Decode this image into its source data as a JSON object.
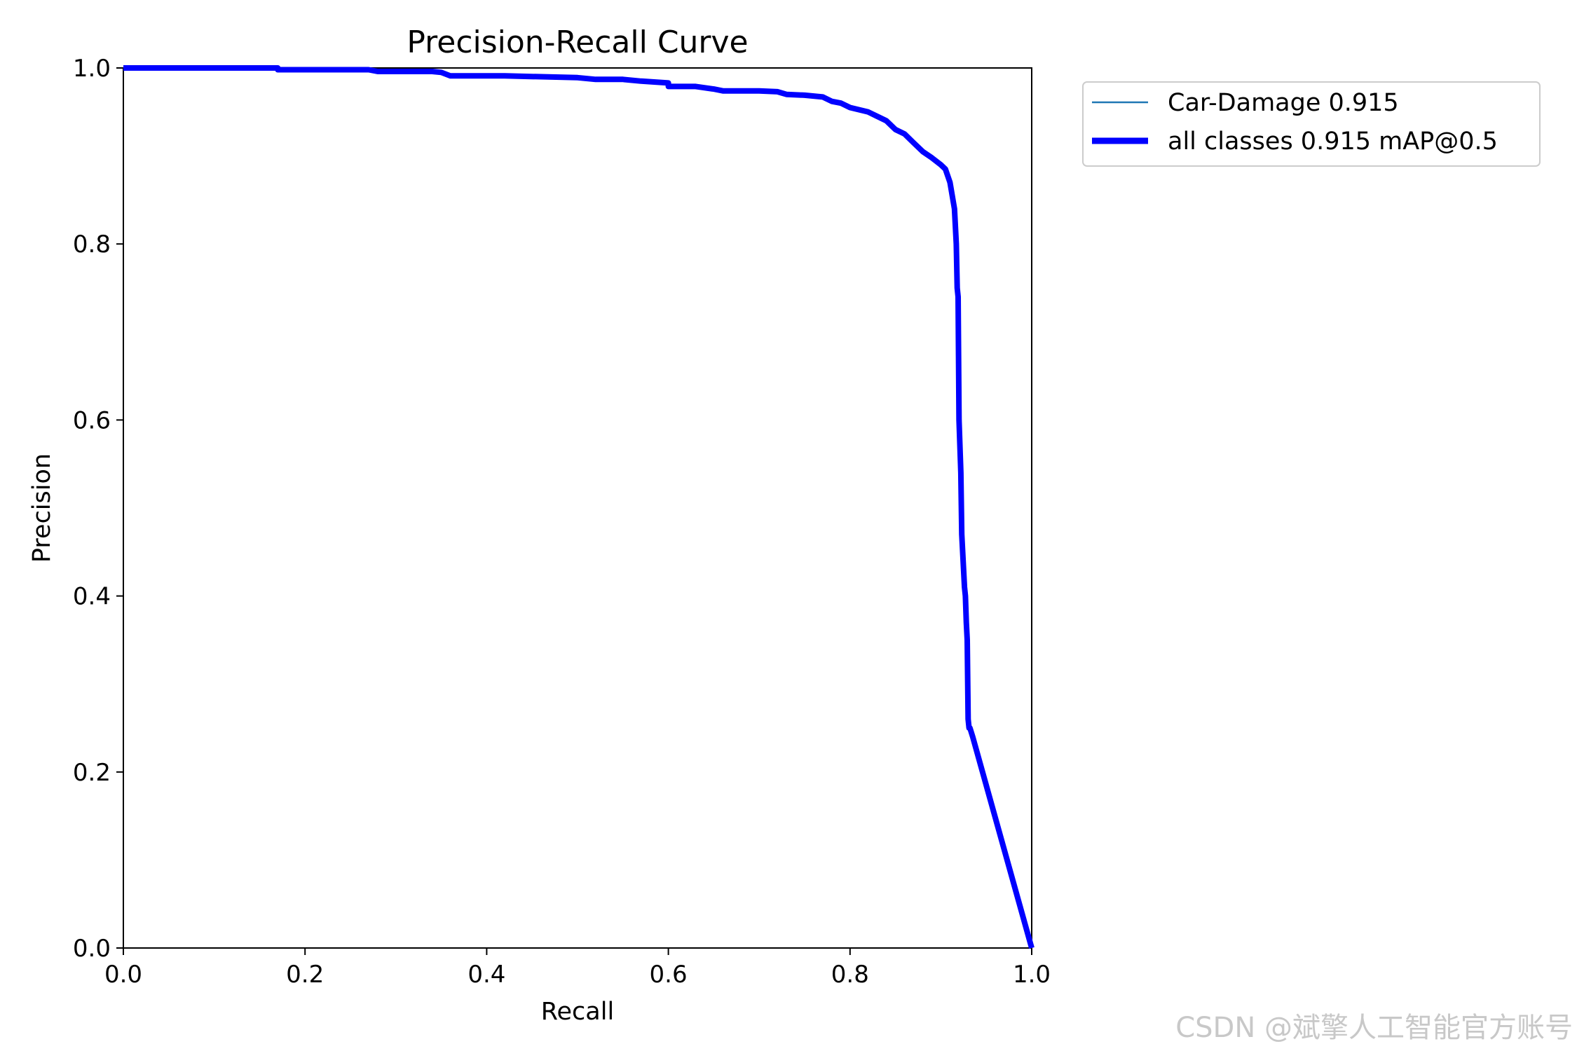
{
  "chart_data": {
    "type": "line",
    "title": "Precision-Recall Curve",
    "xlabel": "Recall",
    "ylabel": "Precision",
    "xlim": [
      0.0,
      1.0
    ],
    "ylim": [
      0.0,
      1.0
    ],
    "xticks": [
      "0.0",
      "0.2",
      "0.4",
      "0.6",
      "0.8",
      "1.0"
    ],
    "yticks": [
      "0.0",
      "0.2",
      "0.4",
      "0.6",
      "0.8",
      "1.0"
    ],
    "grid": false,
    "legend_position": "outside-top-right",
    "series": [
      {
        "name": "Car-Damage 0.915",
        "color": "#1f77b4",
        "line_style": "thin",
        "x": [
          0.0,
          0.17,
          0.17,
          0.27,
          0.28,
          0.34,
          0.35,
          0.36,
          0.42,
          0.5,
          0.52,
          0.55,
          0.57,
          0.6,
          0.6,
          0.63,
          0.65,
          0.66,
          0.7,
          0.72,
          0.73,
          0.75,
          0.77,
          0.78,
          0.79,
          0.8,
          0.82,
          0.83,
          0.84,
          0.85,
          0.86,
          0.87,
          0.88,
          0.89,
          0.9,
          0.905,
          0.91,
          0.915,
          0.917,
          0.918,
          0.919,
          0.92,
          0.921,
          0.922,
          0.923,
          0.924,
          0.926,
          0.927,
          0.928,
          0.929,
          0.93,
          0.931,
          0.932,
          0.935,
          1.0
        ],
        "y": [
          1.0,
          1.0,
          0.998,
          0.998,
          0.996,
          0.996,
          0.995,
          0.991,
          0.991,
          0.989,
          0.987,
          0.987,
          0.985,
          0.983,
          0.979,
          0.979,
          0.976,
          0.974,
          0.974,
          0.973,
          0.97,
          0.969,
          0.967,
          0.962,
          0.96,
          0.955,
          0.95,
          0.945,
          0.94,
          0.93,
          0.925,
          0.915,
          0.905,
          0.898,
          0.89,
          0.885,
          0.87,
          0.84,
          0.8,
          0.75,
          0.74,
          0.6,
          0.57,
          0.54,
          0.47,
          0.45,
          0.41,
          0.4,
          0.37,
          0.35,
          0.26,
          0.25,
          0.25,
          0.24,
          0.0
        ]
      },
      {
        "name": "all classes 0.915 mAP@0.5",
        "color": "#0000ff",
        "line_style": "thick",
        "x": [
          0.0,
          0.17,
          0.17,
          0.27,
          0.28,
          0.34,
          0.35,
          0.36,
          0.42,
          0.5,
          0.52,
          0.55,
          0.57,
          0.6,
          0.6,
          0.63,
          0.65,
          0.66,
          0.7,
          0.72,
          0.73,
          0.75,
          0.77,
          0.78,
          0.79,
          0.8,
          0.82,
          0.83,
          0.84,
          0.85,
          0.86,
          0.87,
          0.88,
          0.89,
          0.9,
          0.905,
          0.91,
          0.915,
          0.917,
          0.918,
          0.919,
          0.92,
          0.921,
          0.922,
          0.923,
          0.924,
          0.926,
          0.927,
          0.928,
          0.929,
          0.93,
          0.931,
          0.932,
          0.935,
          1.0
        ],
        "y": [
          1.0,
          1.0,
          0.998,
          0.998,
          0.996,
          0.996,
          0.995,
          0.991,
          0.991,
          0.989,
          0.987,
          0.987,
          0.985,
          0.983,
          0.979,
          0.979,
          0.976,
          0.974,
          0.974,
          0.973,
          0.97,
          0.969,
          0.967,
          0.962,
          0.96,
          0.955,
          0.95,
          0.945,
          0.94,
          0.93,
          0.925,
          0.915,
          0.905,
          0.898,
          0.89,
          0.885,
          0.87,
          0.84,
          0.8,
          0.75,
          0.74,
          0.6,
          0.57,
          0.54,
          0.47,
          0.45,
          0.41,
          0.4,
          0.37,
          0.35,
          0.26,
          0.25,
          0.25,
          0.24,
          0.0
        ]
      }
    ]
  },
  "watermark": "CSDN @斌擎人工智能官方账号"
}
